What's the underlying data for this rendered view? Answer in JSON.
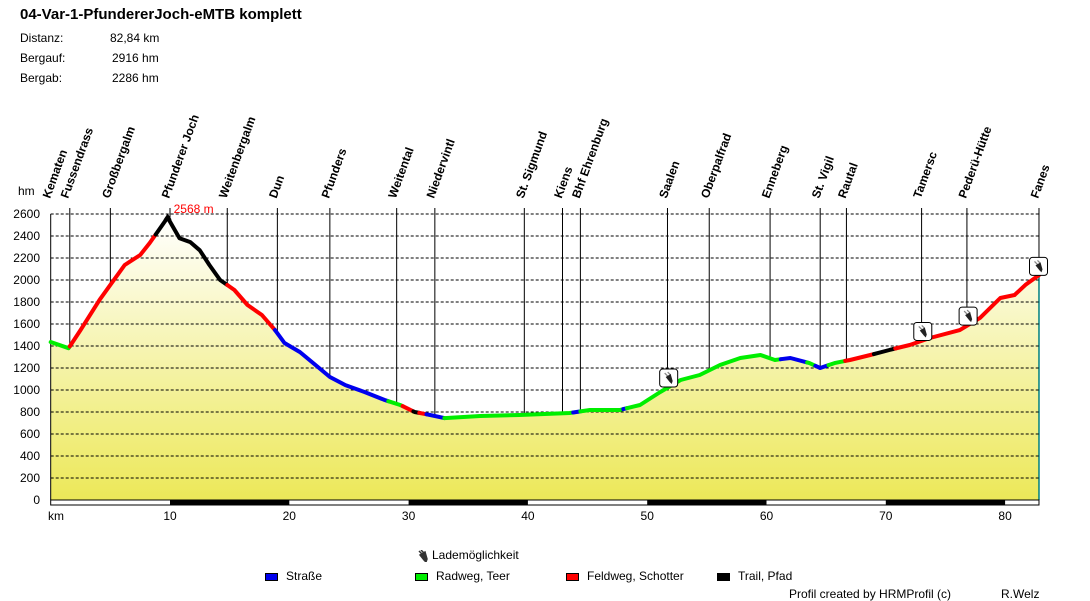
{
  "header": {
    "title": "04-Var-1-PfundererJoch-eMTB komplett",
    "stats": [
      {
        "label": "Distanz:",
        "value": "82,84 km"
      },
      {
        "label": "Bergauf:",
        "value": "2916 hm"
      },
      {
        "label": "Bergab:",
        "value": "2286 hm"
      }
    ]
  },
  "chart_data": {
    "type": "area",
    "ylabel": "hm",
    "xlabel": "km",
    "xlim": [
      0,
      82.84
    ],
    "ylim": [
      0,
      2600
    ],
    "yticks": [
      0,
      200,
      400,
      600,
      800,
      1000,
      1200,
      1400,
      1600,
      1800,
      2000,
      2200,
      2400,
      2600
    ],
    "xticks": [
      10,
      20,
      30,
      40,
      50,
      60,
      70,
      80
    ],
    "grid": true,
    "max_label": "2568 m",
    "max_point": [
      9.8,
      2568
    ],
    "profile": [
      [
        0,
        1436
      ],
      [
        1.5,
        1380
      ],
      [
        2.5,
        1545
      ],
      [
        4.1,
        1820
      ],
      [
        5,
        1955
      ],
      [
        6.2,
        2136
      ],
      [
        7.5,
        2227
      ],
      [
        8.3,
        2336
      ],
      [
        9.8,
        2568
      ],
      [
        10.8,
        2380
      ],
      [
        11.7,
        2345
      ],
      [
        12.5,
        2270
      ],
      [
        13.3,
        2136
      ],
      [
        14.2,
        2000
      ],
      [
        15.4,
        1909
      ],
      [
        16.5,
        1773
      ],
      [
        17.7,
        1682
      ],
      [
        18.8,
        1545
      ],
      [
        19.6,
        1427
      ],
      [
        20.9,
        1345
      ],
      [
        22.2,
        1227
      ],
      [
        23.4,
        1118
      ],
      [
        24.7,
        1045
      ],
      [
        26.3,
        982
      ],
      [
        28,
        909
      ],
      [
        29.3,
        864
      ],
      [
        30.5,
        800
      ],
      [
        31.8,
        773
      ],
      [
        33,
        745
      ],
      [
        36,
        764
      ],
      [
        39.3,
        773
      ],
      [
        43.5,
        791
      ],
      [
        45.2,
        818
      ],
      [
        47.7,
        818
      ],
      [
        49.4,
        864
      ],
      [
        51.1,
        982
      ],
      [
        52.8,
        1091
      ],
      [
        54.4,
        1136
      ],
      [
        56.1,
        1227
      ],
      [
        57.8,
        1291
      ],
      [
        59.5,
        1318
      ],
      [
        60.7,
        1273
      ],
      [
        62,
        1291
      ],
      [
        63.6,
        1245
      ],
      [
        64.5,
        1200
      ],
      [
        65.7,
        1245
      ],
      [
        67,
        1273
      ],
      [
        68.7,
        1318
      ],
      [
        70.3,
        1364
      ],
      [
        72,
        1409
      ],
      [
        73.7,
        1473
      ],
      [
        76.2,
        1545
      ],
      [
        77.9,
        1655
      ],
      [
        79.6,
        1836
      ],
      [
        80.8,
        1864
      ],
      [
        81.7,
        1955
      ],
      [
        82.84,
        2045
      ]
    ],
    "surface_segments": [
      [
        0,
        1.6,
        "radweg"
      ],
      [
        1.6,
        8.8,
        "feldweg"
      ],
      [
        8.8,
        14.8,
        "trail"
      ],
      [
        14.8,
        18.8,
        "feldweg"
      ],
      [
        18.8,
        28.3,
        "strasse"
      ],
      [
        28.3,
        29.5,
        "radweg"
      ],
      [
        29.5,
        30.4,
        "feldweg"
      ],
      [
        30.4,
        30.9,
        "trail"
      ],
      [
        30.9,
        31.5,
        "feldweg"
      ],
      [
        31.5,
        33,
        "strasse"
      ],
      [
        33,
        43.8,
        "radweg"
      ],
      [
        43.8,
        44.4,
        "strasse"
      ],
      [
        44.4,
        48,
        "radweg"
      ],
      [
        48,
        48.3,
        "strasse"
      ],
      [
        48.3,
        61.2,
        "radweg"
      ],
      [
        61.2,
        63.4,
        "strasse"
      ],
      [
        63.4,
        64.1,
        "radweg"
      ],
      [
        64.1,
        65.2,
        "strasse"
      ],
      [
        65.2,
        66.6,
        "radweg"
      ],
      [
        66.6,
        69,
        "feldweg"
      ],
      [
        69,
        70.8,
        "trail"
      ],
      [
        70.8,
        82.84,
        "feldweg"
      ]
    ],
    "waypoints": [
      {
        "name": "Kematen",
        "km": 0
      },
      {
        "name": "Fussendrass",
        "km": 1.6
      },
      {
        "name": "Großbergalm",
        "km": 5.0
      },
      {
        "name": "Pfunderer Joch",
        "km": 10.0
      },
      {
        "name": "Weitenbergalm",
        "km": 14.8
      },
      {
        "name": "Dun",
        "km": 19.0
      },
      {
        "name": "Pfunders",
        "km": 23.4
      },
      {
        "name": "Weitental",
        "km": 29.0
      },
      {
        "name": "Niedervintl",
        "km": 32.2
      },
      {
        "name": "St. Sigmund",
        "km": 39.7
      },
      {
        "name": "Kiens",
        "km": 42.9
      },
      {
        "name": "Bhf Ehrenburg",
        "km": 44.4
      },
      {
        "name": "Saalen",
        "km": 51.7
      },
      {
        "name": "Oberpalfrad",
        "km": 55.2
      },
      {
        "name": "Enneberg",
        "km": 60.3
      },
      {
        "name": "St. Vigil",
        "km": 64.5
      },
      {
        "name": "Rautal",
        "km": 66.7
      },
      {
        "name": "Tamersc",
        "km": 73.0
      },
      {
        "name": "Pederü-Hütte",
        "km": 76.8
      },
      {
        "name": "Fanes",
        "km": 82.84
      }
    ],
    "charging_points_km": [
      51.8,
      73.1,
      76.9,
      82.8
    ],
    "legend": {
      "charging": {
        "label": "Lademöglichkeit",
        "icon": "plug-icon"
      },
      "types": [
        {
          "key": "strasse",
          "label": "Straße",
          "color": "#0000ee"
        },
        {
          "key": "radweg",
          "label": "Radweg, Teer",
          "color": "#00ee00"
        },
        {
          "key": "feldweg",
          "label": "Feldweg, Schotter",
          "color": "#ff0000"
        },
        {
          "key": "trail",
          "label": "Trail, Pfad",
          "color": "#000000"
        }
      ],
      "placement": "bottom"
    },
    "fill_colors": {
      "top": "#ffffff",
      "bottom": "#ece858"
    }
  },
  "footer": {
    "credit": "Profil created by HRMProfil (c)",
    "author": "R.Welz"
  }
}
